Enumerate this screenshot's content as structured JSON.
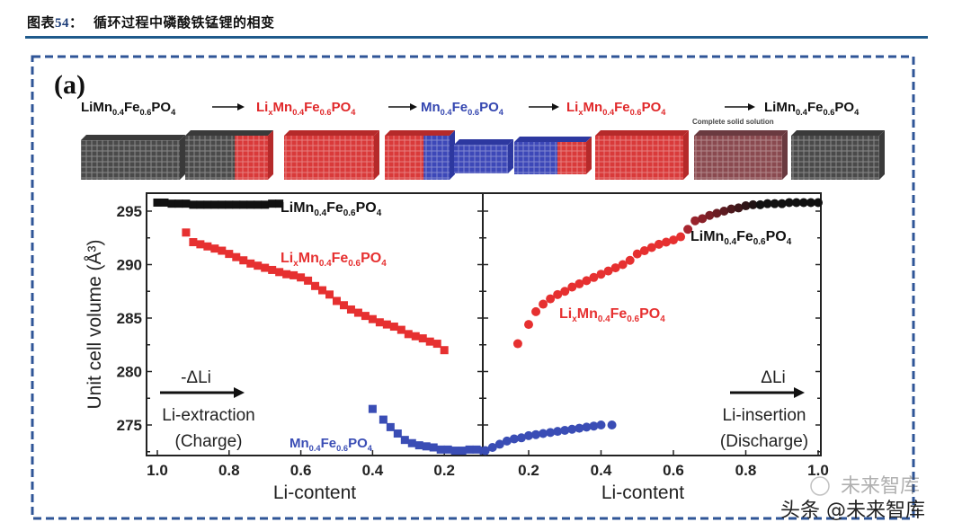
{
  "header": {
    "label": "图表",
    "number": "54",
    "sep": "：",
    "title": "循环过程中磷酸铁锰锂的相变"
  },
  "figure": {
    "panel_label": "(a)",
    "sequence": [
      {
        "formula": "LiMn0.4Fe0.6PO4",
        "color": "#111111"
      },
      {
        "formula": "LixMn0.4Fe0.6PO4",
        "color": "#e0282a"
      },
      {
        "formula": "Mn0.4Fe0.6PO4",
        "color": "#3446b0"
      },
      {
        "formula": "LixMn0.4Fe0.6PO4",
        "color": "#e0282a"
      },
      {
        "formula": "LiMn0.4Fe0.6PO4",
        "color": "#111111"
      }
    ],
    "complete_solid_solution": "Complete solid solution",
    "crystals": [
      "gray",
      "gray-red",
      "red",
      "red-blue",
      "blue",
      "blue-red",
      "red",
      "rose",
      "gray"
    ]
  },
  "colors": {
    "black": "#111111",
    "red": "#e63030",
    "blue": "#3a4db5",
    "darkred": "#7a1018",
    "frame": "#2f5597"
  },
  "chart_data": [
    {
      "type": "scatter",
      "panel": "charge",
      "ylabel": "Unit cell volume (Å3)",
      "xlabel": "Li-content",
      "xlim": [
        1.02,
        0.09
      ],
      "ylim": [
        272.1,
        296.7
      ],
      "x_reversed": true,
      "xticks": [
        "1.0",
        "0.8",
        "0.6",
        "0.4",
        "0.2"
      ],
      "xtick_values": [
        1.0,
        0.8,
        0.6,
        0.4,
        0.2
      ],
      "yticks": [
        "295",
        "290",
        "285",
        "280",
        "275"
      ],
      "ytick_values": [
        295,
        290,
        285,
        280,
        275
      ],
      "annotations": {
        "arrow_label": "-ΔLi",
        "line1": "Li-extraction",
        "line2": "(Charge)"
      },
      "series": [
        {
          "name": "LiMn0.4Fe0.6PO4",
          "color": "#111111",
          "marker": "square",
          "x": [
            1.0,
            0.98,
            0.96,
            0.94,
            0.92,
            0.9,
            0.88,
            0.86,
            0.84,
            0.82,
            0.8,
            0.78,
            0.76,
            0.74,
            0.72,
            0.7,
            0.68,
            0.66
          ],
          "y": [
            295.8,
            295.8,
            295.7,
            295.7,
            295.7,
            295.6,
            295.6,
            295.6,
            295.6,
            295.6,
            295.6,
            295.6,
            295.6,
            295.6,
            295.6,
            295.6,
            295.7,
            295.7
          ]
        },
        {
          "name": "LixMn0.4Fe0.6PO4",
          "color": "#e63030",
          "marker": "square",
          "x": [
            0.92,
            0.9,
            0.88,
            0.86,
            0.84,
            0.82,
            0.8,
            0.78,
            0.76,
            0.74,
            0.72,
            0.7,
            0.68,
            0.66,
            0.64,
            0.62,
            0.6,
            0.58,
            0.56,
            0.54,
            0.52,
            0.5,
            0.48,
            0.46,
            0.44,
            0.42,
            0.4,
            0.38,
            0.36,
            0.34,
            0.32,
            0.3,
            0.28,
            0.26,
            0.24,
            0.22,
            0.2
          ],
          "y": [
            293.0,
            292.1,
            291.9,
            291.7,
            291.5,
            291.3,
            291.0,
            290.7,
            290.4,
            290.1,
            289.9,
            289.7,
            289.5,
            289.3,
            289.1,
            289.0,
            288.8,
            288.5,
            288.0,
            287.6,
            287.2,
            286.6,
            286.2,
            285.8,
            285.5,
            285.2,
            284.9,
            284.6,
            284.4,
            284.2,
            283.9,
            283.5,
            283.3,
            283.1,
            282.8,
            282.6,
            282.0
          ]
        },
        {
          "name": "Mn0.4Fe0.6PO4",
          "color": "#3a4db5",
          "marker": "square",
          "x": [
            0.4,
            0.37,
            0.35,
            0.33,
            0.31,
            0.29,
            0.27,
            0.25,
            0.23,
            0.21,
            0.19,
            0.17,
            0.15,
            0.13,
            0.11,
            0.09
          ],
          "y": [
            276.5,
            275.5,
            274.8,
            274.2,
            273.6,
            273.3,
            273.1,
            273.0,
            272.9,
            272.7,
            272.7,
            272.6,
            272.6,
            272.7,
            272.7,
            272.6
          ]
        }
      ]
    },
    {
      "type": "scatter",
      "panel": "discharge",
      "xlabel": "Li-content",
      "xlim": [
        0.075,
        1.0
      ],
      "ylim": [
        272.1,
        296.7
      ],
      "xticks": [
        "0.2",
        "0.4",
        "0.6",
        "0.8",
        "1.0"
      ],
      "xtick_values": [
        0.2,
        0.4,
        0.6,
        0.8,
        1.0
      ],
      "annotations": {
        "arrow_label": "ΔLi",
        "line1": "Li-insertion",
        "line2": "(Discharge)"
      },
      "series": [
        {
          "name": "Mn0.4Fe0.6PO4",
          "color": "#3a4db5",
          "marker": "circle",
          "x": [
            0.08,
            0.1,
            0.12,
            0.14,
            0.16,
            0.18,
            0.2,
            0.22,
            0.24,
            0.26,
            0.28,
            0.3,
            0.32,
            0.34,
            0.36,
            0.38,
            0.4,
            0.43
          ],
          "y": [
            272.6,
            272.9,
            273.2,
            273.5,
            273.7,
            273.8,
            274.0,
            274.1,
            274.2,
            274.3,
            274.4,
            274.5,
            274.6,
            274.7,
            274.8,
            274.9,
            275.0,
            275.0
          ]
        },
        {
          "name": "LixMn0.4Fe0.6PO4",
          "color": "#e63030",
          "marker": "circle",
          "x": [
            0.17,
            0.2,
            0.22,
            0.24,
            0.26,
            0.28,
            0.3,
            0.32,
            0.34,
            0.36,
            0.38,
            0.4,
            0.42,
            0.44,
            0.46,
            0.48,
            0.5,
            0.52,
            0.54,
            0.56,
            0.58,
            0.6,
            0.62
          ],
          "y": [
            282.6,
            284.4,
            285.6,
            286.3,
            286.8,
            287.2,
            287.5,
            287.9,
            288.2,
            288.5,
            288.8,
            289.1,
            289.4,
            289.7,
            290.0,
            290.4,
            291.0,
            291.3,
            291.6,
            291.9,
            292.1,
            292.3,
            292.6
          ]
        },
        {
          "name": "LiMn0.4Fe0.6PO4",
          "color": "#111111",
          "marker": "circle",
          "x": [
            0.64,
            0.66,
            0.68,
            0.7,
            0.72,
            0.74,
            0.76,
            0.78,
            0.8,
            0.82,
            0.84,
            0.86,
            0.88,
            0.9,
            0.92,
            0.94,
            0.96,
            0.98,
            1.0
          ],
          "y": [
            293.3,
            294.1,
            294.3,
            294.6,
            294.8,
            295.0,
            295.2,
            295.3,
            295.5,
            295.6,
            295.6,
            295.7,
            295.7,
            295.7,
            295.8,
            295.8,
            295.8,
            295.8,
            295.8
          ]
        }
      ]
    }
  ],
  "watermark": {
    "line1": "未来智库",
    "line2": "头条 @未来智库"
  }
}
